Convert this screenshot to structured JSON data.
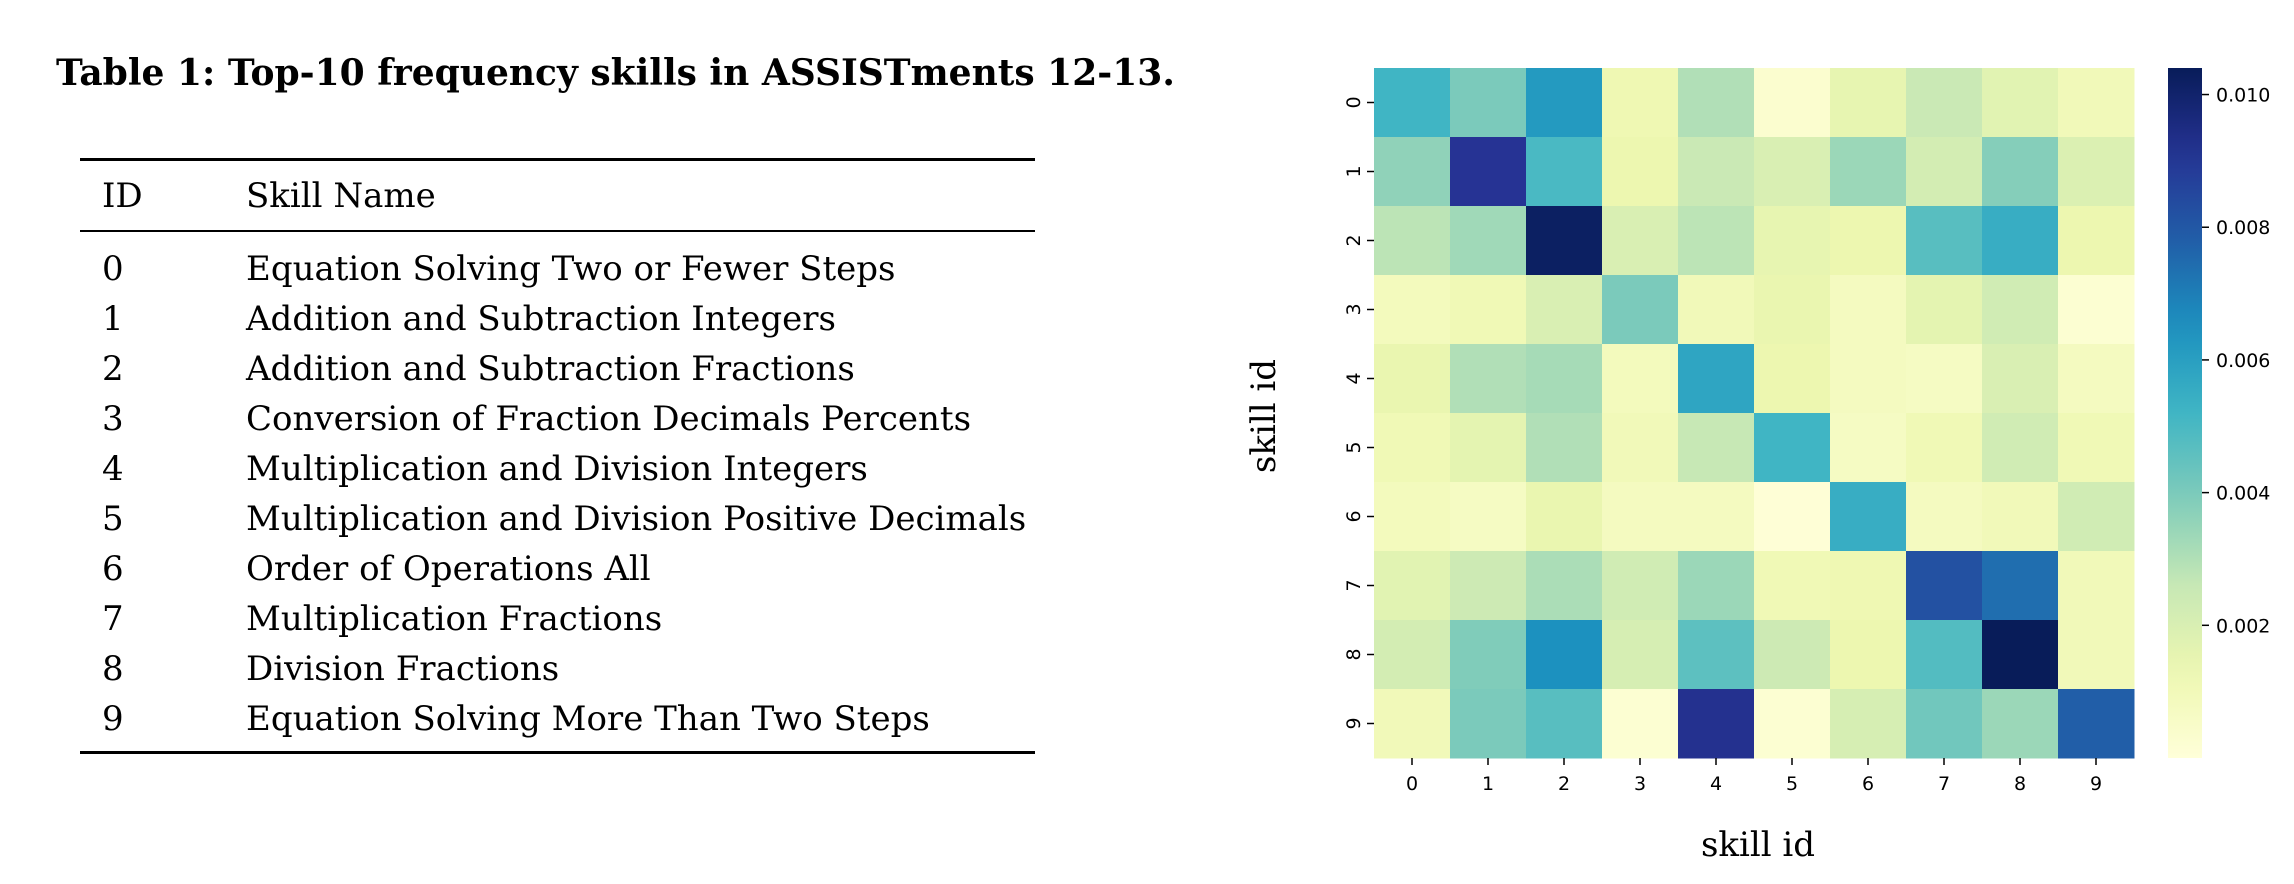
{
  "caption": "Table 1: Top-10 frequency skills in ASSISTments 12-13.",
  "table": {
    "headers": {
      "id": "ID",
      "name": "Skill Name"
    },
    "rows": [
      {
        "id": "0",
        "name": "Equation Solving Two or Fewer Steps"
      },
      {
        "id": "1",
        "name": "Addition and Subtraction Integers"
      },
      {
        "id": "2",
        "name": "Addition and Subtraction Fractions"
      },
      {
        "id": "3",
        "name": "Conversion of Fraction Decimals Percents"
      },
      {
        "id": "4",
        "name": "Multiplication and Division Integers"
      },
      {
        "id": "5",
        "name": "Multiplication and Division Positive Decimals"
      },
      {
        "id": "6",
        "name": "Order of Operations All"
      },
      {
        "id": "7",
        "name": "Multiplication Fractions"
      },
      {
        "id": "8",
        "name": "Division Fractions"
      },
      {
        "id": "9",
        "name": "Equation Solving More Than Two Steps"
      }
    ]
  },
  "chart_data": {
    "type": "heatmap",
    "title": "",
    "xlabel": "skill id",
    "ylabel": "skill id",
    "x": [
      "0",
      "1",
      "2",
      "3",
      "4",
      "5",
      "6",
      "7",
      "8",
      "9"
    ],
    "y": [
      "0",
      "1",
      "2",
      "3",
      "4",
      "5",
      "6",
      "7",
      "8",
      "9"
    ],
    "values": [
      [
        0.0052,
        0.004,
        0.0062,
        0.0012,
        0.003,
        0.0003,
        0.0015,
        0.0025,
        0.0017,
        0.001
      ],
      [
        0.0036,
        0.0091,
        0.005,
        0.0013,
        0.0025,
        0.002,
        0.0034,
        0.0022,
        0.0038,
        0.0019
      ],
      [
        0.0028,
        0.0033,
        0.0102,
        0.002,
        0.0028,
        0.0015,
        0.0013,
        0.0047,
        0.0055,
        0.0013
      ],
      [
        0.0009,
        0.0011,
        0.002,
        0.004,
        0.001,
        0.0014,
        0.0008,
        0.0016,
        0.0023,
        0.0002
      ],
      [
        0.0014,
        0.003,
        0.0032,
        0.0009,
        0.0058,
        0.0013,
        0.0008,
        0.0007,
        0.002,
        0.0008
      ],
      [
        0.0011,
        0.0016,
        0.003,
        0.001,
        0.0026,
        0.0052,
        0.0007,
        0.0011,
        0.0023,
        0.0011
      ],
      [
        0.0009,
        0.0007,
        0.0014,
        0.0008,
        0.0008,
        0.0001,
        0.0055,
        0.0008,
        0.001,
        0.0023
      ],
      [
        0.0017,
        0.0024,
        0.0031,
        0.0023,
        0.0034,
        0.0011,
        0.0012,
        0.0082,
        0.0074,
        0.001
      ],
      [
        0.0022,
        0.0039,
        0.0065,
        0.0021,
        0.0046,
        0.0024,
        0.0013,
        0.0048,
        0.0104,
        0.001
      ],
      [
        0.001,
        0.004,
        0.0047,
        0.0002,
        0.0092,
        0.0002,
        0.0021,
        0.0042,
        0.0034,
        0.0078
      ]
    ],
    "vmin": 0.0,
    "vmax": 0.0104,
    "colormap": "YlGnBu",
    "colorbar": {
      "ticks": [
        0.002,
        0.004,
        0.006,
        0.008,
        0.01
      ],
      "tick_labels": [
        "0.002",
        "0.004",
        "0.006",
        "0.008",
        "0.010"
      ],
      "position": "right"
    },
    "grid": false
  }
}
